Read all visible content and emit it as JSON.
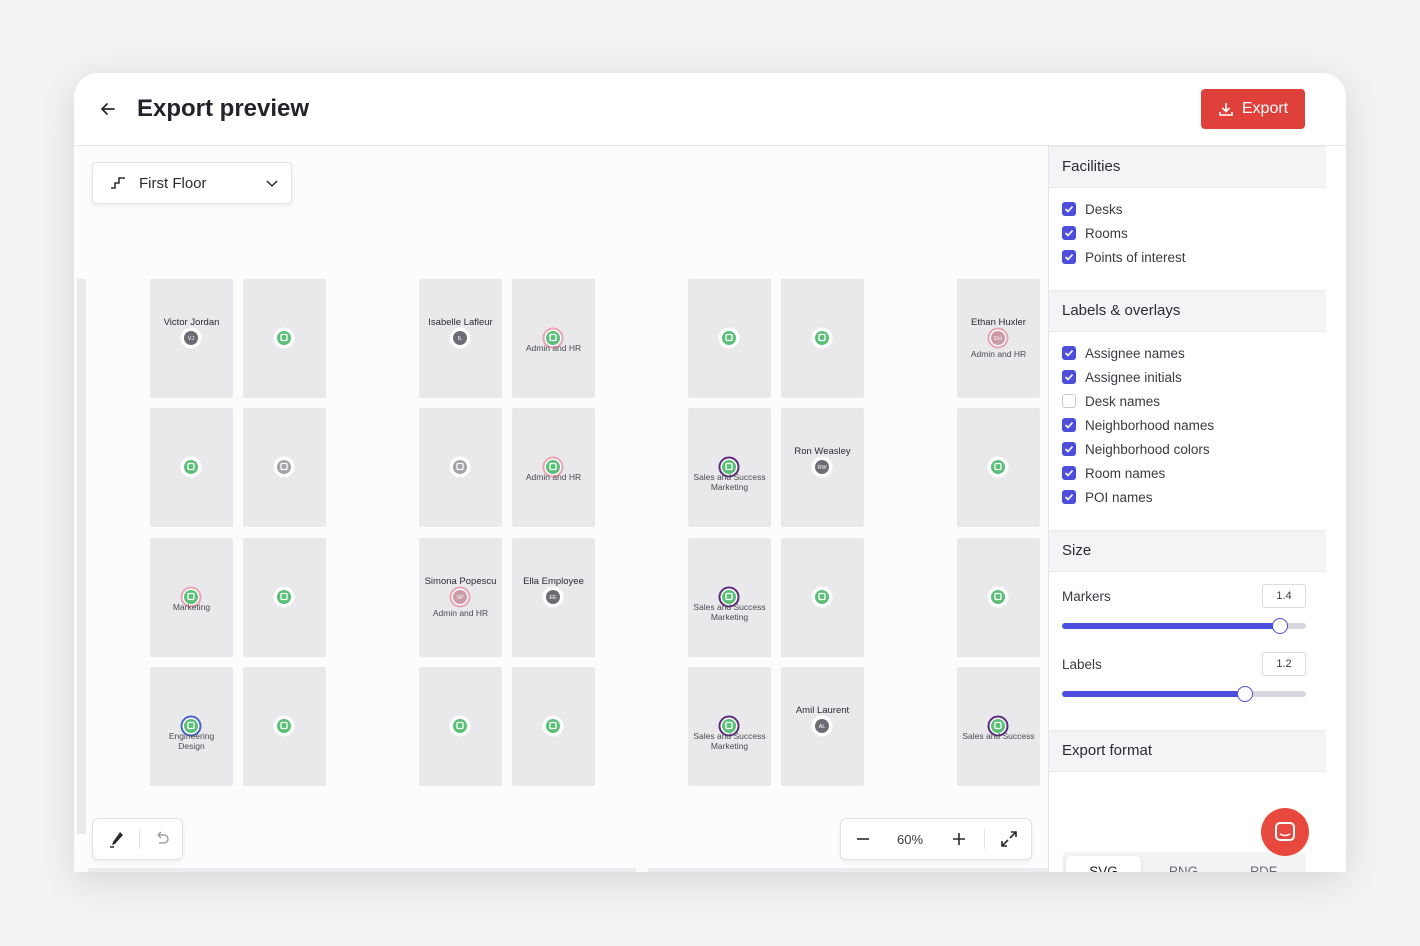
{
  "header": {
    "title": "Export preview",
    "export_button": "Export"
  },
  "floor_selector": "First Floor",
  "floor_plan": {
    "rows": [
      [
        {
          "name": "Victor Jordan",
          "initials": "VJ",
          "marker": "#6c6c74"
        },
        {
          "marker": "#5cbf78"
        },
        {
          "name": "Isabelle Lafleur",
          "initials": "IL",
          "marker": "#6c6c74"
        },
        {
          "marker": "#5cbf78",
          "ring": "#eaa3b5",
          "neighborhoods": [
            "Admin and HR"
          ]
        },
        {
          "marker": "#5cbf78"
        },
        {
          "marker": "#5cbf78"
        },
        {
          "name": "Ethan Huxler",
          "initials": "EH",
          "marker": "#c99aa6",
          "ring": "#eaa3b5",
          "neighborhoods": [
            "Admin and HR"
          ]
        }
      ],
      [
        {
          "marker": "#5cbf78"
        },
        {
          "marker": "#a3a3aa"
        },
        {
          "marker": "#a3a3aa"
        },
        {
          "marker": "#5cbf78",
          "ring": "#eaa3b5",
          "neighborhoods": [
            "Admin and HR"
          ]
        },
        {
          "marker": "#5cbf78",
          "ring": "#5b2a7e",
          "neighborhoods": [
            "Sales and Success",
            "Marketing"
          ]
        },
        {
          "name": "Ron Weasley",
          "initials": "RW",
          "marker": "#6c6c74"
        },
        {
          "marker": "#5cbf78"
        }
      ],
      [
        {
          "marker": "#5cbf78",
          "ring": "#eaa3b5",
          "neighborhoods": [
            "Marketing"
          ]
        },
        {
          "marker": "#5cbf78"
        },
        {
          "name": "Simona Popescu",
          "initials": "SP",
          "marker": "#c99aa6",
          "ring": "#eaa3b5",
          "neighborhoods": [
            "Admin and HR"
          ]
        },
        {
          "name": "Ella Employee",
          "initials": "EE",
          "marker": "#6c6c74"
        },
        {
          "marker": "#5cbf78",
          "ring": "#5b2a7e",
          "neighborhoods": [
            "Sales and Success",
            "Marketing"
          ]
        },
        {
          "marker": "#5cbf78"
        },
        {
          "marker": "#5cbf78"
        }
      ],
      [
        {
          "marker": "#5cbf78",
          "ring": "#4a63c9",
          "neighborhoods": [
            "Engineering",
            "Design"
          ]
        },
        {
          "marker": "#5cbf78"
        },
        {
          "marker": "#5cbf78"
        },
        {
          "marker": "#5cbf78"
        },
        {
          "marker": "#5cbf78",
          "ring": "#5b2a7e",
          "neighborhoods": [
            "Sales and Success",
            "Marketing"
          ]
        },
        {
          "name": "Amil Laurent",
          "initials": "AL",
          "marker": "#6c6c74"
        },
        {
          "marker": "#5cbf78",
          "ring": "#5b2a7e",
          "neighborhoods": [
            "Sales and Success"
          ]
        }
      ]
    ]
  },
  "zoom": "60%",
  "sidebar": {
    "sections": [
      {
        "title": "Facilities",
        "options": [
          {
            "label": "Desks",
            "checked": true
          },
          {
            "label": "Rooms",
            "checked": true
          },
          {
            "label": "Points of interest",
            "checked": true
          }
        ]
      },
      {
        "title": "Labels & overlays",
        "options": [
          {
            "label": "Assignee names",
            "checked": true
          },
          {
            "label": "Assignee initials",
            "checked": true
          },
          {
            "label": "Desk names",
            "checked": false
          },
          {
            "label": "Neighborhood names",
            "checked": true
          },
          {
            "label": "Neighborhood colors",
            "checked": true
          },
          {
            "label": "Room names",
            "checked": true
          },
          {
            "label": "POI names",
            "checked": true
          }
        ]
      }
    ]
  },
  "size": {
    "title": "Size",
    "sliders": [
      {
        "label": "Markers",
        "value": 1.4
      },
      {
        "label": "Labels",
        "value": 1.2
      }
    ]
  },
  "export_format": {
    "title": "Export format",
    "options": [
      {
        "label": "SVG",
        "selected": true
      },
      {
        "label": "PNG"
      },
      {
        "label": "PDF"
      }
    ]
  }
}
